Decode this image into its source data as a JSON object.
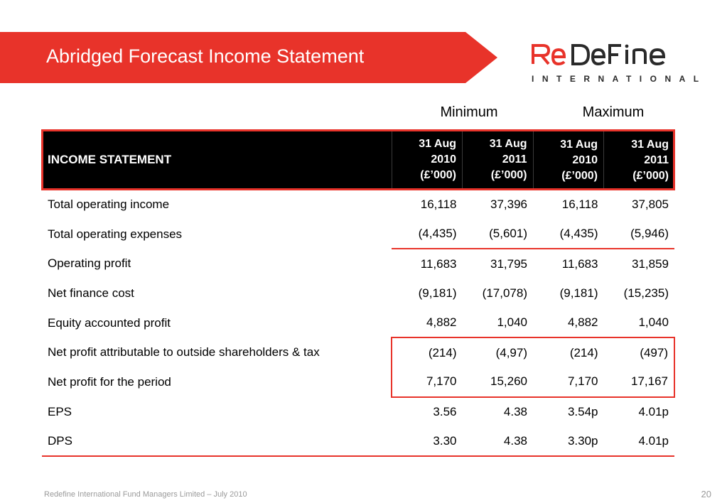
{
  "slide": {
    "title": "Abridged Forecast Income Statement",
    "footer": "Redefine International Fund Managers Limited – July 2010",
    "page_number": "20"
  },
  "logo": {
    "wordmark_re": "RE",
    "wordmark_define": "DEFINE",
    "subtitle": "INTERNATIONAL",
    "accent_color": "#e8332a"
  },
  "groups": {
    "minimum": "Minimum",
    "maximum": "Maximum"
  },
  "table": {
    "header_label": "INCOME STATEMENT",
    "columns": [
      {
        "l1": "31 Aug",
        "l2": "2010",
        "l3": "(£’000)"
      },
      {
        "l1": "31 Aug",
        "l2": "2011",
        "l3": "(£’000)"
      },
      {
        "l1": "31 Aug",
        "l2": "2010",
        "l3": "(£’000)"
      },
      {
        "l1": "31 Aug",
        "l2": "2011",
        "l3": "(£’000)"
      }
    ],
    "rows": [
      {
        "label": "Total operating income",
        "values": [
          "16,118",
          "37,396",
          "16,118",
          "37,805"
        ]
      },
      {
        "label": "Total operating expenses",
        "values": [
          "(4,435)",
          "(5,601)",
          "(4,435)",
          "(5,946)"
        ]
      },
      {
        "label": "Operating profit",
        "values": [
          "11,683",
          "31,795",
          "11,683",
          "31,859"
        ]
      },
      {
        "label": "Net finance cost",
        "values": [
          "(9,181)",
          "(17,078)",
          "(9,181)",
          "(15,235)"
        ]
      },
      {
        "label": "Equity accounted profit",
        "values": [
          "4,882",
          "1,040",
          "4,882",
          "1,040"
        ]
      },
      {
        "label": "Net profit attributable to outside shareholders & tax",
        "values": [
          "(214)",
          "(4,97)",
          "(214)",
          "(497)"
        ]
      },
      {
        "label": "Net profit for the period",
        "values": [
          "7,170",
          "15,260",
          "7,170",
          "17,167"
        ]
      },
      {
        "label": "EPS",
        "values": [
          "3.56",
          "4.38",
          "3.54p",
          "4.01p"
        ]
      },
      {
        "label": "DPS",
        "values": [
          "3.30",
          "4.38",
          "3.30p",
          "4.01p"
        ]
      }
    ]
  }
}
